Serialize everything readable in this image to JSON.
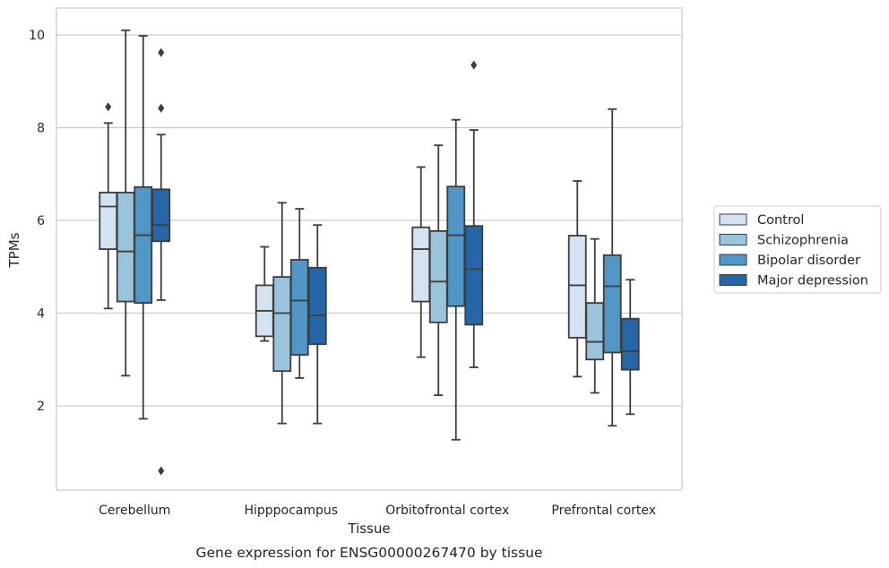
{
  "chart_data": {
    "type": "box",
    "caption": "Gene expression for ENSG00000267470 by tissue",
    "xlabel": "Tissue",
    "ylabel": "TPMs",
    "ylim": [
      0.2,
      10.6
    ],
    "yticks": [
      2,
      4,
      6,
      8,
      10
    ],
    "grid": "horizontal",
    "legend_position": "right",
    "categories": [
      "Cerebellum",
      "Hipppocampus",
      "Orbitofrontal cortex",
      "Prefrontal cortex"
    ],
    "series": [
      {
        "name": "Control",
        "color": "#d4e3f2",
        "boxes": [
          {
            "whislo": 4.1,
            "q1": 5.38,
            "median": 6.3,
            "q3": 6.6,
            "whishi": 8.1,
            "fliers": [
              8.45
            ]
          },
          {
            "whislo": 3.4,
            "q1": 3.5,
            "median": 4.05,
            "q3": 4.6,
            "whishi": 5.43,
            "fliers": []
          },
          {
            "whislo": 3.05,
            "q1": 4.25,
            "median": 5.38,
            "q3": 5.85,
            "whishi": 7.15,
            "fliers": []
          },
          {
            "whislo": 2.63,
            "q1": 3.47,
            "median": 4.6,
            "q3": 5.67,
            "whishi": 6.85,
            "fliers": []
          }
        ]
      },
      {
        "name": "Schizophrenia",
        "color": "#9ac3dc",
        "boxes": [
          {
            "whislo": 2.65,
            "q1": 4.25,
            "median": 5.33,
            "q3": 6.6,
            "whishi": 10.1,
            "fliers": []
          },
          {
            "whislo": 1.62,
            "q1": 2.75,
            "median": 4.0,
            "q3": 4.78,
            "whishi": 6.38,
            "fliers": []
          },
          {
            "whislo": 2.23,
            "q1": 3.8,
            "median": 4.68,
            "q3": 5.77,
            "whishi": 7.62,
            "fliers": []
          },
          {
            "whislo": 2.28,
            "q1": 3.0,
            "median": 3.38,
            "q3": 4.22,
            "whishi": 5.6,
            "fliers": []
          }
        ]
      },
      {
        "name": "Bipolar disorder",
        "color": "#5096c6",
        "boxes": [
          {
            "whislo": 1.72,
            "q1": 4.22,
            "median": 5.68,
            "q3": 6.72,
            "whishi": 9.98,
            "fliers": []
          },
          {
            "whislo": 2.6,
            "q1": 3.1,
            "median": 4.27,
            "q3": 5.15,
            "whishi": 6.25,
            "fliers": []
          },
          {
            "whislo": 1.27,
            "q1": 4.15,
            "median": 5.68,
            "q3": 6.73,
            "whishi": 8.17,
            "fliers": []
          },
          {
            "whislo": 1.57,
            "q1": 3.15,
            "median": 4.58,
            "q3": 5.25,
            "whishi": 8.4,
            "fliers": []
          }
        ]
      },
      {
        "name": "Major depression",
        "color": "#2566a8",
        "boxes": [
          {
            "whislo": 4.28,
            "q1": 5.55,
            "median": 5.9,
            "q3": 6.67,
            "whishi": 7.85,
            "fliers": [
              9.62,
              8.42,
              0.6
            ]
          },
          {
            "whislo": 1.62,
            "q1": 3.33,
            "median": 3.95,
            "q3": 4.98,
            "whishi": 5.9,
            "fliers": []
          },
          {
            "whislo": 2.83,
            "q1": 3.75,
            "median": 4.95,
            "q3": 5.88,
            "whishi": 7.95,
            "fliers": [
              9.35
            ]
          },
          {
            "whislo": 1.82,
            "q1": 2.78,
            "median": 3.18,
            "q3": 3.88,
            "whishi": 4.72,
            "fliers": []
          }
        ]
      }
    ]
  }
}
